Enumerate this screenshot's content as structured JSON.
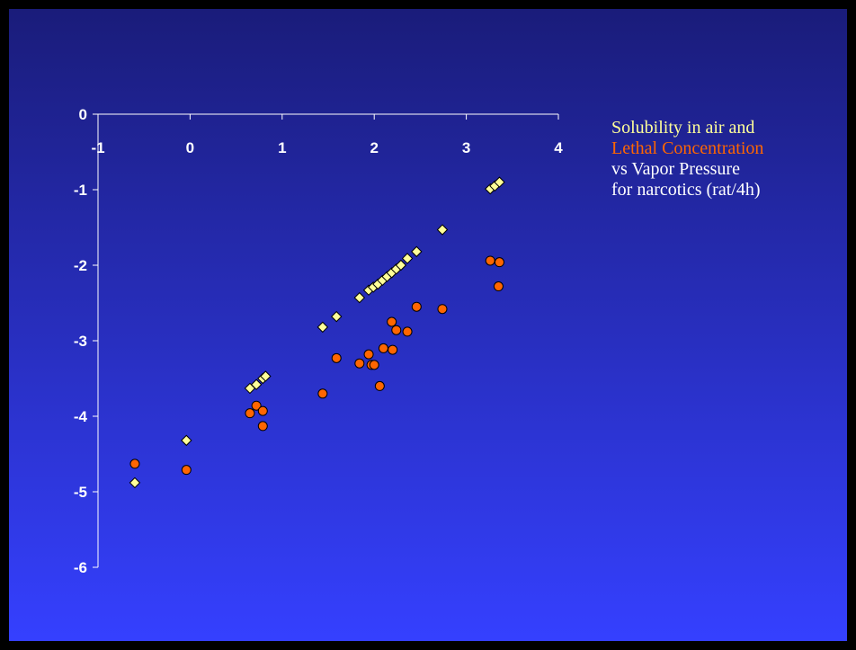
{
  "caption": {
    "line1": "Solubility in air and",
    "line2": "Lethal Concentration",
    "line3": "vs Vapor Pressure",
    "line4": "for narcotics (rat/4h)"
  },
  "colors": {
    "background_top": "#1a1c7a",
    "background_bottom": "#3540ff",
    "solubility": "#ffff99",
    "lethal": "#ff6600",
    "axis": "#ffffff"
  },
  "chart_data": {
    "type": "scatter",
    "title": "",
    "xlabel": "",
    "ylabel": "",
    "xlim": [
      -1,
      4
    ],
    "ylim": [
      -6,
      0
    ],
    "x_ticks": [
      -1,
      0,
      1,
      2,
      3,
      4
    ],
    "y_ticks": [
      0,
      -1,
      -2,
      -3,
      -4,
      -5,
      -6
    ],
    "grid": false,
    "series": [
      {
        "name": "Solubility in air",
        "marker": "diamond",
        "color": "#ffff99",
        "points": [
          [
            -0.6,
            -4.88
          ],
          [
            -0.04,
            -4.32
          ],
          [
            0.65,
            -3.63
          ],
          [
            0.72,
            -3.58
          ],
          [
            0.79,
            -3.5
          ],
          [
            0.82,
            -3.47
          ],
          [
            1.44,
            -2.82
          ],
          [
            1.59,
            -2.68
          ],
          [
            1.84,
            -2.43
          ],
          [
            1.94,
            -2.33
          ],
          [
            1.99,
            -2.29
          ],
          [
            2.04,
            -2.25
          ],
          [
            2.09,
            -2.2
          ],
          [
            2.14,
            -2.15
          ],
          [
            2.19,
            -2.1
          ],
          [
            2.24,
            -2.05
          ],
          [
            2.29,
            -2.0
          ],
          [
            2.36,
            -1.91
          ],
          [
            2.46,
            -1.82
          ],
          [
            2.74,
            -1.53
          ],
          [
            3.26,
            -0.99
          ],
          [
            3.31,
            -0.95
          ],
          [
            3.36,
            -0.9
          ]
        ]
      },
      {
        "name": "Lethal Concentration",
        "marker": "circle",
        "color": "#ff6600",
        "points": [
          [
            -0.6,
            -4.63
          ],
          [
            -0.04,
            -4.71
          ],
          [
            0.65,
            -3.96
          ],
          [
            0.72,
            -3.86
          ],
          [
            0.79,
            -3.93
          ],
          [
            0.79,
            -4.13
          ],
          [
            1.44,
            -3.7
          ],
          [
            1.59,
            -3.23
          ],
          [
            1.84,
            -3.3
          ],
          [
            1.94,
            -3.18
          ],
          [
            1.97,
            -3.32
          ],
          [
            2.0,
            -3.32
          ],
          [
            2.06,
            -3.6
          ],
          [
            2.1,
            -3.1
          ],
          [
            2.19,
            -2.75
          ],
          [
            2.2,
            -3.12
          ],
          [
            2.24,
            -2.86
          ],
          [
            2.36,
            -2.88
          ],
          [
            2.46,
            -2.55
          ],
          [
            2.74,
            -2.58
          ],
          [
            3.26,
            -1.94
          ],
          [
            3.36,
            -1.96
          ],
          [
            3.35,
            -2.28
          ]
        ]
      }
    ]
  }
}
